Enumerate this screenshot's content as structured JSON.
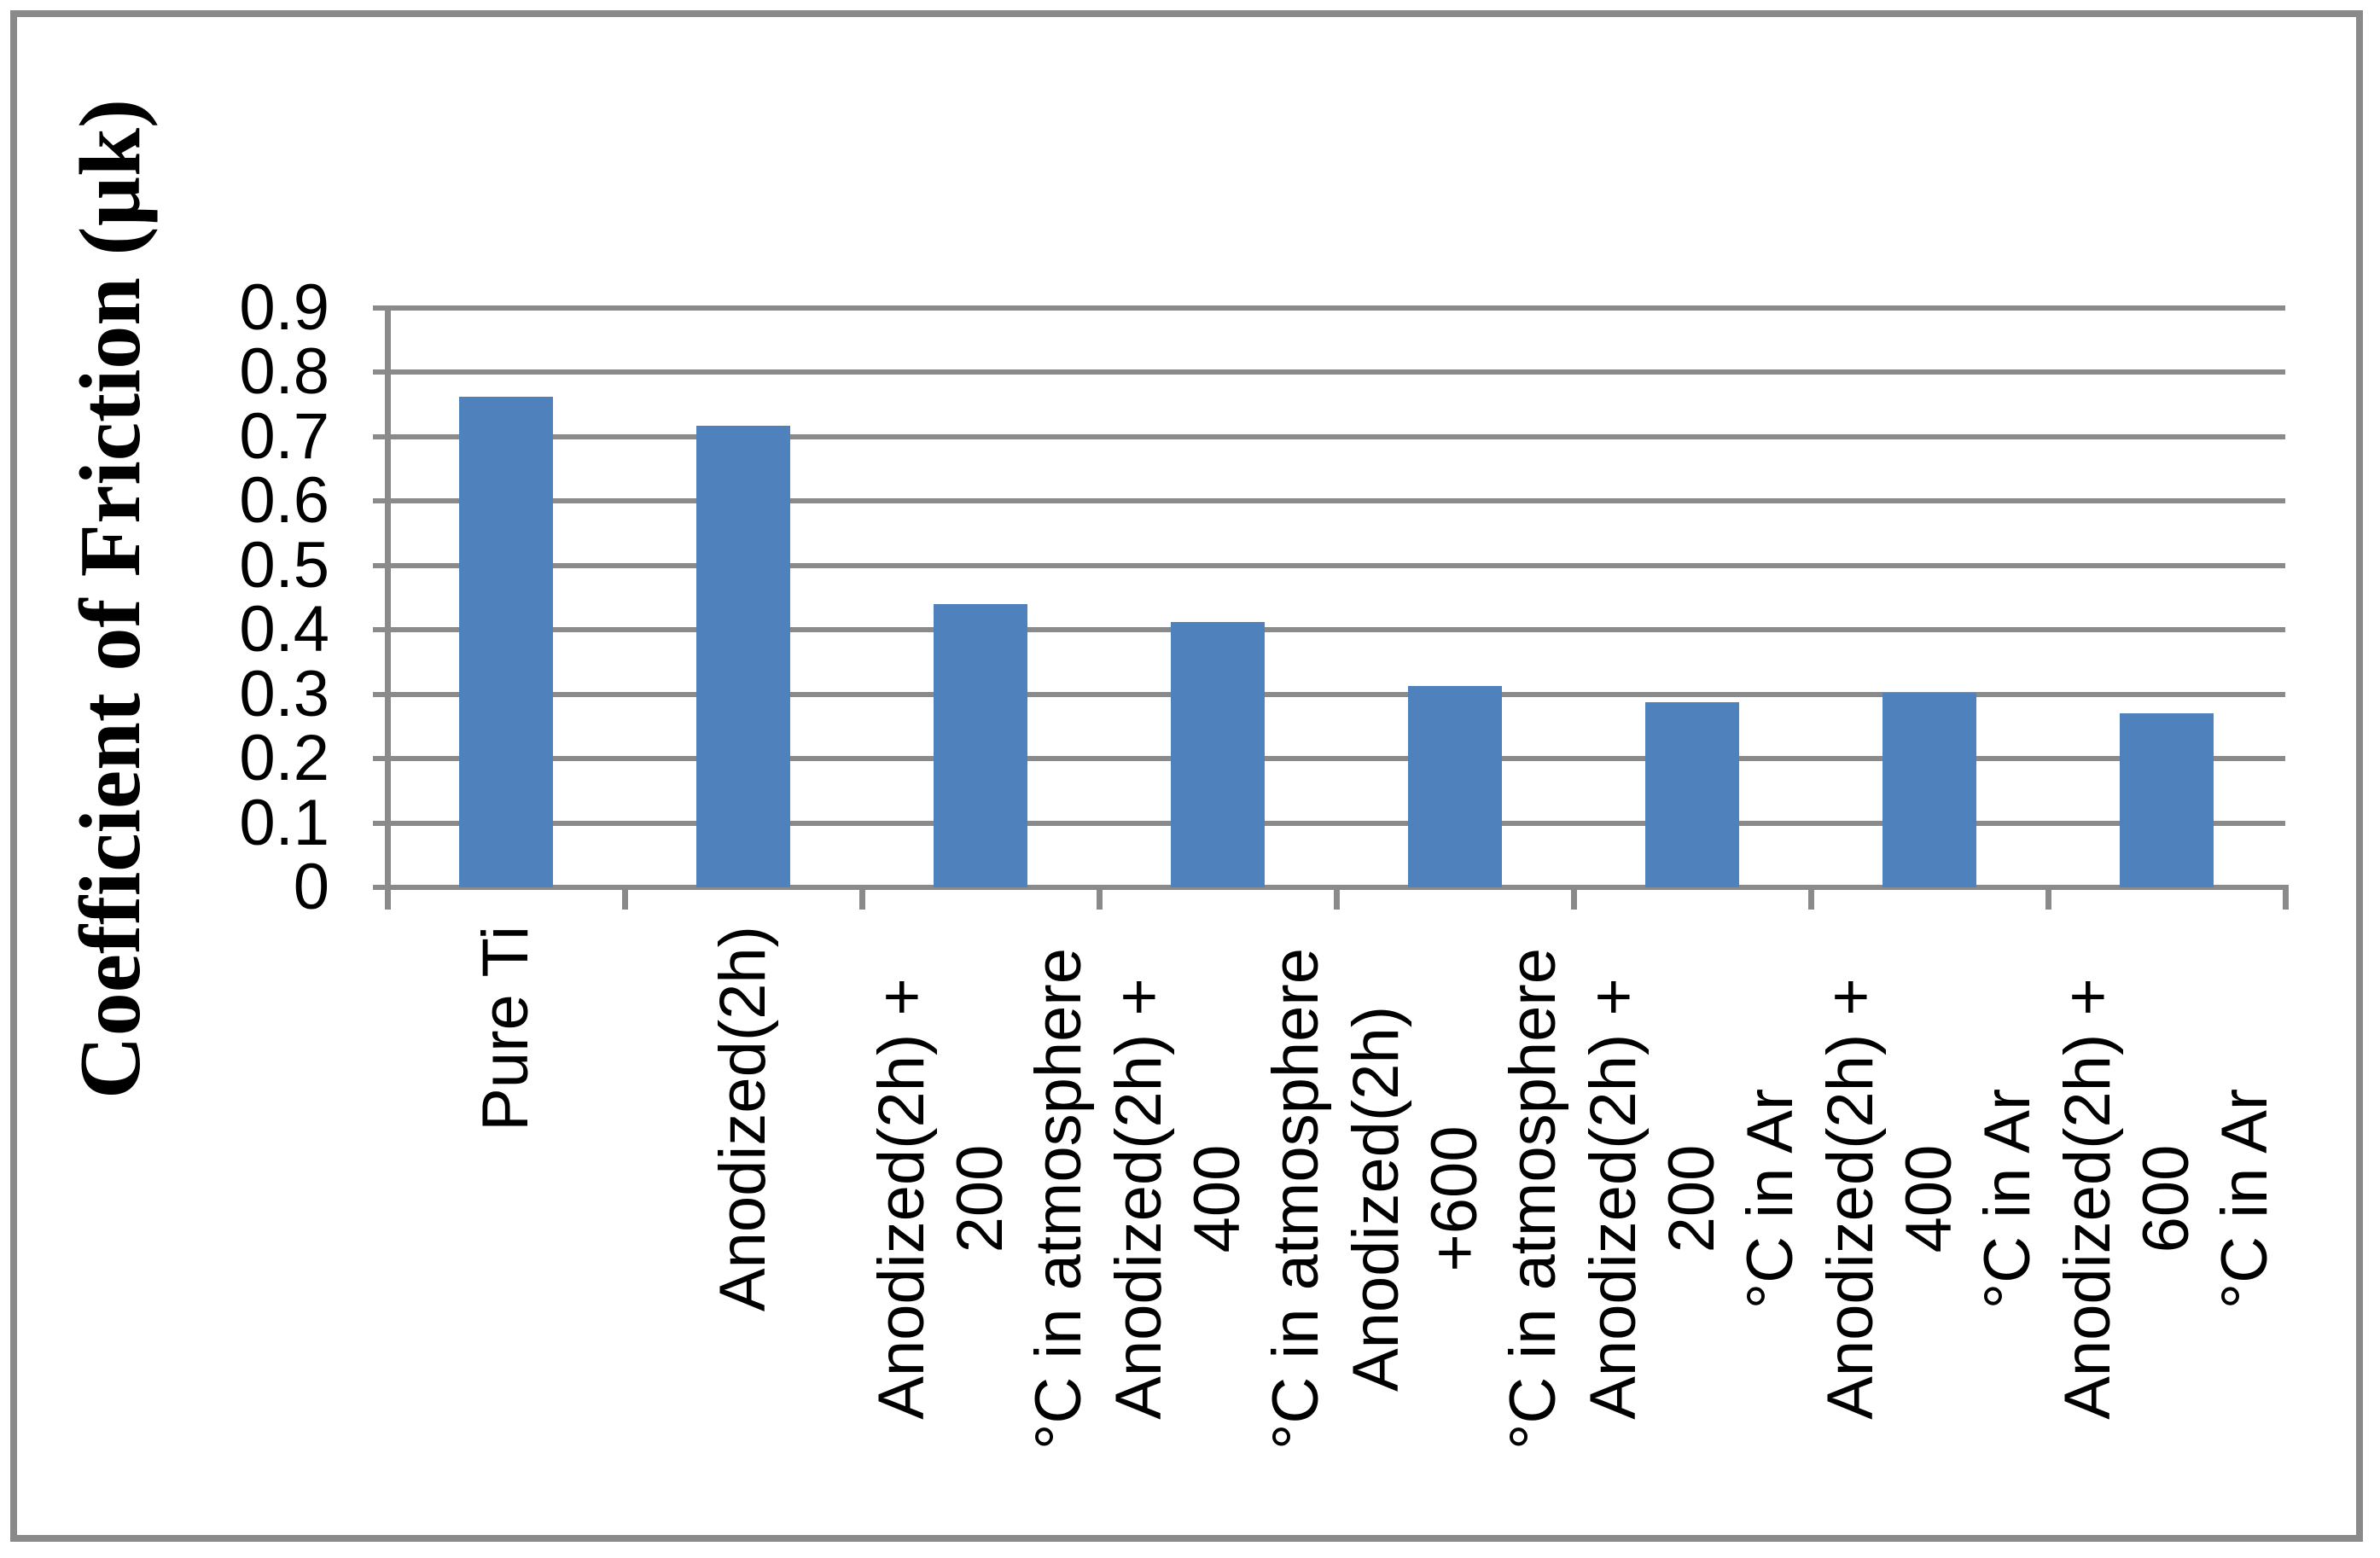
{
  "chart_data": {
    "type": "bar",
    "title": "",
    "ylabel": "Coefficient of Friction (µk)",
    "xlabel": "",
    "categories": [
      "Pure Ti",
      "Anodized(2h)",
      "Anodized(2h) + 200\n°C in atmosphere",
      "Anodized(2h) + 400\n°C in atmosphere",
      "Anodized(2h) +600\n°C in atmosphere",
      "Anodized(2h) + 200\n°C in Ar",
      "Anodized(2h) + 400\n°C in Ar",
      "Anodized(2h) + 600\n°C in Ar"
    ],
    "values": [
      0.762,
      0.716,
      0.44,
      0.412,
      0.312,
      0.287,
      0.302,
      0.27
    ],
    "ylim": [
      0,
      0.9
    ],
    "ytick_step": 0.1,
    "ytick_labels": [
      "0",
      "0.1",
      "0.2",
      "0.3",
      "0.4",
      "0.5",
      "0.6",
      "0.7",
      "0.8",
      "0.9"
    ],
    "grid": true,
    "legend_position": "none",
    "bar_color": "#4F81BD",
    "grid_color": "#8A8A8A",
    "text_color": "#000000",
    "frame_color": "#8A8A8A"
  }
}
